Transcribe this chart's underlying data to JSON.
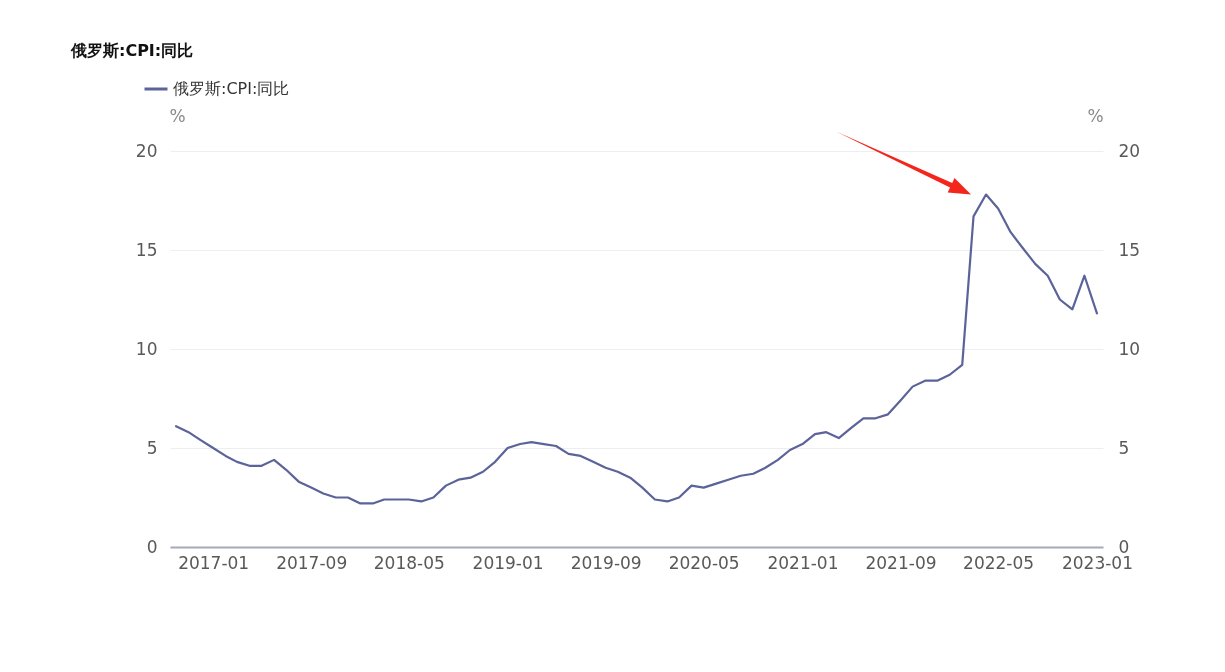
{
  "chart_data": {
    "type": "line",
    "title": "俄罗斯:CPI:同比",
    "ylabel": "%",
    "y2label": "%",
    "x": [
      "2016-10",
      "2016-11",
      "2016-12",
      "2017-01",
      "2017-02",
      "2017-03",
      "2017-04",
      "2017-05",
      "2017-06",
      "2017-07",
      "2017-08",
      "2017-09",
      "2017-10",
      "2017-11",
      "2017-12",
      "2018-01",
      "2018-02",
      "2018-03",
      "2018-04",
      "2018-05",
      "2018-06",
      "2018-07",
      "2018-08",
      "2018-09",
      "2018-10",
      "2018-11",
      "2018-12",
      "2019-01",
      "2019-02",
      "2019-03",
      "2019-04",
      "2019-05",
      "2019-06",
      "2019-07",
      "2019-08",
      "2019-09",
      "2019-10",
      "2019-11",
      "2019-12",
      "2020-01",
      "2020-02",
      "2020-03",
      "2020-04",
      "2020-05",
      "2020-06",
      "2020-07",
      "2020-08",
      "2020-09",
      "2020-10",
      "2020-11",
      "2020-12",
      "2021-01",
      "2021-02",
      "2021-03",
      "2021-04",
      "2021-05",
      "2021-06",
      "2021-07",
      "2021-08",
      "2021-09",
      "2021-10",
      "2021-11",
      "2021-12",
      "2022-01",
      "2022-02",
      "2022-03",
      "2022-04",
      "2022-05",
      "2022-06",
      "2022-07",
      "2022-08",
      "2022-09",
      "2022-10",
      "2022-11",
      "2022-12",
      "2023-01"
    ],
    "series": [
      {
        "name": "俄罗斯:CPI:同比",
        "color": "#5b6399",
        "values": [
          6.1,
          5.8,
          5.4,
          5.0,
          4.6,
          4.3,
          4.1,
          4.1,
          4.4,
          3.9,
          3.3,
          3.0,
          2.7,
          2.5,
          2.5,
          2.2,
          2.2,
          2.4,
          2.4,
          2.4,
          2.3,
          2.5,
          3.1,
          3.4,
          3.5,
          3.8,
          4.3,
          5.0,
          5.2,
          5.3,
          5.2,
          5.1,
          4.7,
          4.6,
          4.3,
          4.0,
          3.8,
          3.5,
          3.0,
          2.4,
          2.3,
          2.5,
          3.1,
          3.0,
          3.2,
          3.4,
          3.6,
          3.7,
          4.0,
          4.4,
          4.9,
          5.2,
          5.7,
          5.8,
          5.5,
          6.0,
          6.5,
          6.5,
          6.7,
          7.4,
          8.1,
          8.4,
          8.4,
          8.7,
          9.2,
          16.7,
          17.8,
          17.1,
          15.9,
          15.1,
          14.3,
          13.7,
          12.5,
          12.0,
          13.7,
          11.8
        ]
      }
    ],
    "xlim": [
      "2016-09-16",
      "2023-01-16"
    ],
    "xticks": [
      "2017-01",
      "2017-09",
      "2018-05",
      "2019-01",
      "2019-09",
      "2020-05",
      "2021-01",
      "2021-09",
      "2022-05",
      "2023-01"
    ],
    "ylim": [
      0,
      20
    ],
    "yticks": [
      0,
      5,
      10,
      15,
      20
    ],
    "y2lim": [
      0,
      20
    ],
    "y2ticks": [
      0,
      5,
      10,
      15,
      20
    ],
    "grid": "y",
    "legend": "top left",
    "marker": "none",
    "line_style": "solid"
  }
}
